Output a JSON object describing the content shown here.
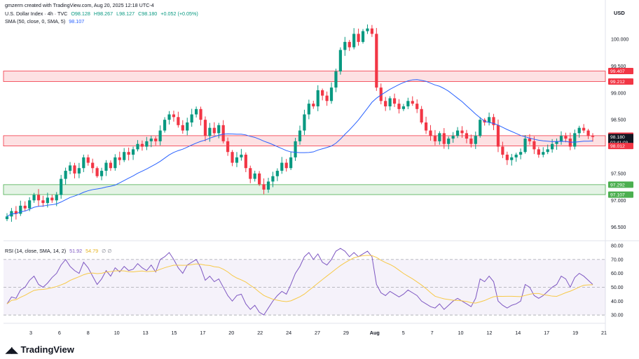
{
  "header": {
    "created_by": "gmzerm created with TradingView.com, Aug 20, 2025 12:18 UTC-4",
    "symbol": "U.S. Dollar Index · 4h · TVC",
    "ohlc": [
      "O98.128",
      "H98.267",
      "L98.127",
      "C98.180",
      "+0.052 (+0.05%)"
    ],
    "sma_label": "SMA (50, close, 0, SMA, 5)",
    "sma_value": "98.107",
    "rsi_label": "RSI (14, close, SMA, 14, 2)",
    "rsi_value": "51.92",
    "rsi_sma_value": "54.79",
    "rsi_extra": "∅ ∅"
  },
  "currency": "USD",
  "logo": "TradingView",
  "colors": {
    "up": "#089981",
    "down": "#f23645",
    "sma": "#2962ff",
    "rsi": "#7e57c2",
    "rsi_ma": "#f7c948",
    "resistance_zone": "#f23645",
    "support_zone": "#4caf50"
  },
  "chart_data": {
    "type": "candlestick",
    "price_axis": {
      "ticks": [
        "100.000",
        "99.500",
        "99.000",
        "98.500",
        "97.500",
        "97.000",
        "96.500"
      ],
      "range": [
        96.3,
        100.6
      ]
    },
    "price_badges": [
      {
        "value": "99.407",
        "color": "#f23645"
      },
      {
        "value": "99.212",
        "color": "#f23645"
      },
      {
        "value": "98.204",
        "color": "#f23645"
      },
      {
        "value": "98.180",
        "sub": "02:41:03",
        "color": "#131722"
      },
      {
        "value": "98.012",
        "color": "#f23645"
      },
      {
        "value": "97.292",
        "color": "#4caf50"
      },
      {
        "value": "97.107",
        "color": "#4caf50"
      }
    ],
    "zones": [
      {
        "from": 99.212,
        "to": 99.407,
        "color": "#f23645"
      },
      {
        "from": 98.012,
        "to": 98.204,
        "color": "#f23645"
      },
      {
        "from": 97.107,
        "to": 97.292,
        "color": "#4caf50"
      }
    ],
    "x_ticks": [
      "3",
      "6",
      "8",
      "10",
      "13",
      "15",
      "17",
      "20",
      "22",
      "24",
      "27",
      "29",
      "Aug",
      "5",
      "7",
      "10",
      "12",
      "14",
      "17",
      "19",
      "21"
    ],
    "close": [
      96.7,
      96.8,
      96.75,
      96.9,
      96.85,
      97.0,
      97.1,
      97.0,
      96.95,
      97.05,
      97.0,
      97.1,
      97.4,
      97.55,
      97.65,
      97.5,
      97.6,
      97.8,
      97.7,
      97.6,
      97.45,
      97.55,
      97.7,
      97.6,
      97.8,
      97.75,
      97.9,
      97.85,
      97.95,
      98.05,
      98.0,
      98.1,
      98.15,
      98.1,
      98.3,
      98.5,
      98.6,
      98.55,
      98.4,
      98.3,
      98.45,
      98.6,
      98.7,
      98.5,
      98.2,
      98.35,
      98.25,
      98.4,
      98.1,
      97.9,
      97.7,
      97.8,
      97.85,
      97.6,
      97.4,
      97.5,
      97.3,
      97.2,
      97.35,
      97.45,
      97.55,
      97.7,
      97.6,
      97.8,
      98.1,
      98.3,
      98.6,
      98.8,
      98.75,
      99.05,
      98.95,
      98.85,
      99.1,
      99.4,
      99.8,
      99.95,
      99.85,
      100.1,
      99.95,
      100.15,
      100.2,
      100.1,
      99.1,
      98.85,
      98.75,
      98.9,
      98.8,
      98.7,
      98.75,
      98.85,
      98.8,
      98.7,
      98.45,
      98.3,
      98.2,
      98.1,
      98.25,
      98.05,
      98.15,
      98.2,
      98.3,
      98.25,
      98.15,
      98.05,
      98.2,
      98.5,
      98.45,
      98.55,
      98.4,
      98.0,
      97.85,
      97.75,
      97.8,
      97.85,
      97.9,
      98.15,
      98.1,
      97.95,
      97.85,
      97.9,
      97.95,
      98.05,
      98.1,
      98.2,
      98.15,
      98.0,
      98.25,
      98.35,
      98.3,
      98.2,
      98.18
    ],
    "sma": {
      "name": "SMA (50, close, 0, SMA, 5)",
      "last": 98.107
    },
    "rsi": {
      "name": "RSI (14, close, SMA, 14, 2)",
      "ticks": [
        "80.00",
        "70.00",
        "60.00",
        "50.00",
        "40.00",
        "30.00"
      ],
      "range": [
        25,
        82
      ],
      "overbought": 70,
      "oversold": 30,
      "values": [
        38,
        43,
        42,
        48,
        50,
        55,
        58,
        52,
        50,
        53,
        57,
        60,
        66,
        70,
        65,
        62,
        60,
        68,
        64,
        58,
        52,
        56,
        62,
        58,
        64,
        61,
        65,
        62,
        63,
        67,
        64,
        62,
        66,
        61,
        70,
        72,
        75,
        70,
        64,
        60,
        66,
        68,
        70,
        64,
        55,
        58,
        54,
        56,
        50,
        44,
        40,
        44,
        45,
        38,
        34,
        37,
        32,
        30,
        35,
        40,
        44,
        47,
        45,
        52,
        60,
        65,
        72,
        75,
        70,
        74,
        68,
        66,
        70,
        76,
        78,
        76,
        72,
        75,
        72,
        74,
        76,
        72,
        52,
        46,
        44,
        47,
        45,
        43,
        45,
        48,
        46,
        44,
        40,
        38,
        36,
        35,
        38,
        34,
        37,
        40,
        42,
        40,
        38,
        36,
        42,
        56,
        54,
        58,
        54,
        40,
        37,
        35,
        37,
        38,
        40,
        52,
        50,
        44,
        42,
        44,
        47,
        50,
        52,
        58,
        56,
        50,
        57,
        60,
        58,
        55,
        52
      ]
    }
  }
}
